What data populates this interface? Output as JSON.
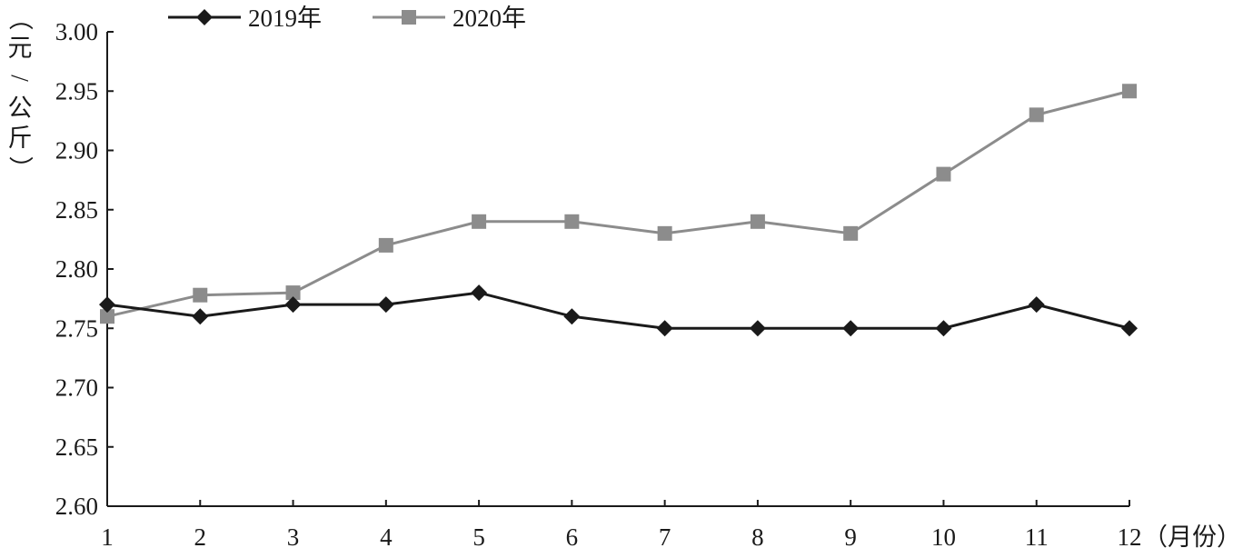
{
  "chart_data": {
    "type": "line",
    "x": [
      1,
      2,
      3,
      4,
      5,
      6,
      7,
      8,
      9,
      10,
      11,
      12
    ],
    "x_tick_labels": [
      "1",
      "2",
      "3",
      "4",
      "5",
      "6",
      "7",
      "8",
      "9",
      "10",
      "11",
      "12"
    ],
    "xlabel": "（月份）",
    "ylabel": "（元/公斤）",
    "ylim": [
      2.6,
      3.0
    ],
    "y_ticks": [
      "2.60",
      "2.65",
      "2.70",
      "2.75",
      "2.80",
      "2.85",
      "2.90",
      "2.95",
      "3.00"
    ],
    "legend_position": "top-left",
    "grid": false,
    "series": [
      {
        "name": "2019年",
        "marker": "diamond",
        "color": "#1a1a1a",
        "values": [
          2.77,
          2.76,
          2.77,
          2.77,
          2.78,
          2.76,
          2.75,
          2.75,
          2.75,
          2.75,
          2.77,
          2.75
        ]
      },
      {
        "name": "2020年",
        "marker": "square",
        "color": "#8c8c8c",
        "values": [
          2.76,
          2.778,
          2.78,
          2.82,
          2.84,
          2.84,
          2.83,
          2.84,
          2.83,
          2.88,
          2.93,
          2.95
        ]
      }
    ]
  }
}
